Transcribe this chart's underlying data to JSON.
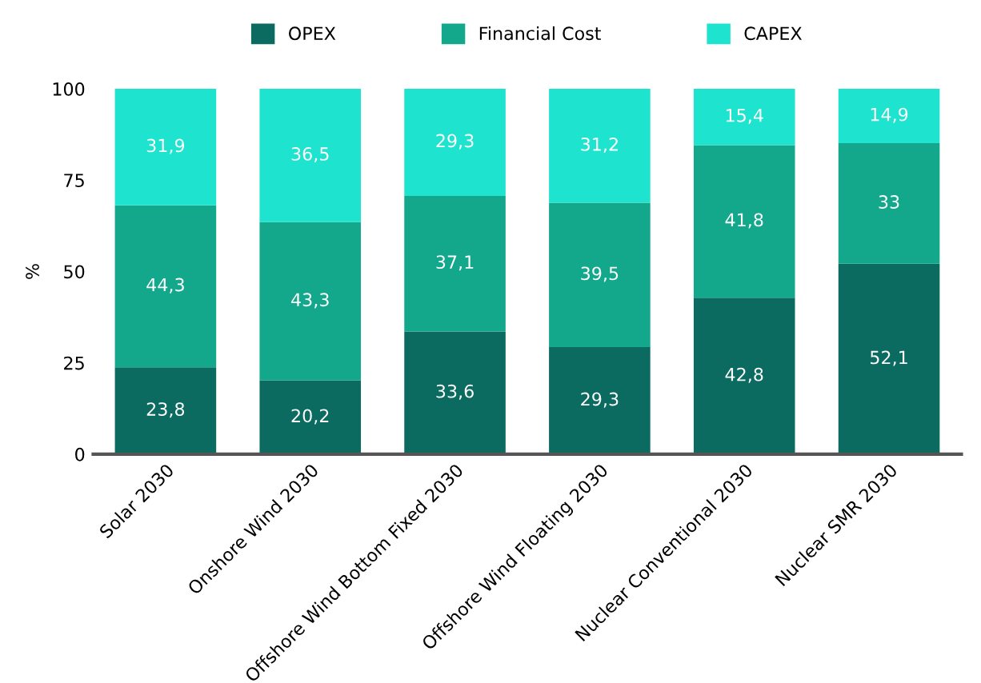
{
  "chart_data": {
    "type": "bar",
    "stacked": true,
    "ylabel": "%",
    "categories": [
      "Solar 2030",
      "Onshore Wind 2030",
      "Offshore Wind Bottom Fixed 2030",
      "Offshore Wind Floating 2030",
      "Nuclear Conventional 2030",
      "Nuclear SMR 2030"
    ],
    "series": [
      {
        "name": "OPEX",
        "color": "#0b6b61",
        "values": [
          23.8,
          20.2,
          33.6,
          29.3,
          42.8,
          52.1
        ],
        "value_labels": [
          "23,8",
          "20,2",
          "33,6",
          "29,3",
          "42,8",
          "52,1"
        ]
      },
      {
        "name": "Financial Cost",
        "color": "#13a88c",
        "values": [
          44.3,
          43.3,
          37.1,
          39.5,
          41.8,
          33
        ],
        "value_labels": [
          "44,3",
          "43,3",
          "37,1",
          "39,5",
          "41,8",
          "33"
        ]
      },
      {
        "name": "CAPEX",
        "color": "#1de3cf",
        "values": [
          31.9,
          36.5,
          29.3,
          31.2,
          15.4,
          14.9
        ],
        "value_labels": [
          "31,9",
          "36,5",
          "29,3",
          "31,2",
          "15,4",
          "14,9"
        ]
      }
    ],
    "ylim": [
      0,
      100
    ],
    "yticks": [
      0,
      25,
      50,
      75,
      100
    ],
    "grid": false,
    "legend": "top"
  }
}
